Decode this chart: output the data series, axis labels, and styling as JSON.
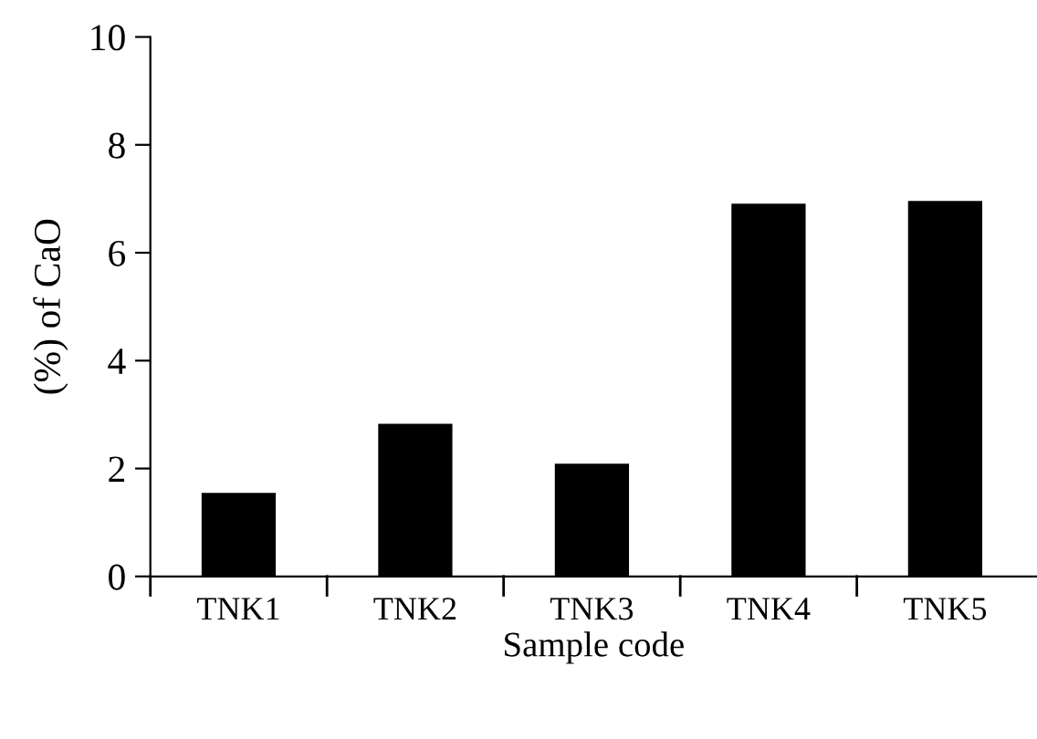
{
  "chart_data": {
    "type": "bar",
    "xlabel": "Sample code",
    "ylabel": "(%) of CaO",
    "categories": [
      "TNK1",
      "TNK2",
      "TNK3",
      "TNK4",
      "TNK5"
    ],
    "values": [
      1.55,
      2.83,
      2.09,
      6.91,
      6.96
    ],
    "color": "#000000",
    "ylim": [
      0,
      10
    ],
    "yticks": [
      0,
      2,
      4,
      6,
      8,
      10
    ],
    "grid": false
  }
}
